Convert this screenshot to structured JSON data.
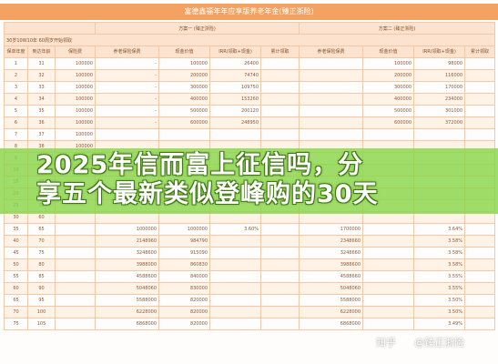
{
  "title": "富德鑫福年年应享版养老年金(臻正浙险)",
  "plan_headers": [
    "",
    "方案一 (臻正浙险)",
    "方案二 (臻正浙险)"
  ],
  "sub_header": "30岁10W10年 60周岁开始领取",
  "columns": [
    "保单年度",
    "到达年龄",
    "保险费",
    "养老保险保费",
    "现金价值",
    "IRR(领取+现金)",
    "累计领取",
    "养老保险保费",
    "现金价值",
    "IRR(领取+现金)",
    "累计领取"
  ],
  "rows": [
    [
      "1",
      "31",
      "100000",
      "-",
      "100000",
      "26400",
      "",
      "",
      "100000",
      "98000",
      ""
    ],
    [
      "2",
      "32",
      "100000",
      "-",
      "200000",
      "74740",
      "",
      "",
      "200000",
      "116000",
      ""
    ],
    [
      "3",
      "33",
      "100000",
      "-",
      "300000",
      "109750",
      "",
      "",
      "300000",
      "170000",
      ""
    ],
    [
      "4",
      "34",
      "100000",
      "-",
      "400000",
      "153260",
      "",
      "",
      "400000",
      "234000",
      ""
    ],
    [
      "5",
      "35",
      "100000",
      "-",
      "500000",
      "200120",
      "",
      "",
      "500000",
      "301000",
      ""
    ],
    [
      "6",
      "36",
      "100000",
      "-",
      "600000",
      "248950",
      "",
      "",
      "600000",
      "372000",
      ""
    ],
    [
      "7",
      "37",
      "100000",
      "",
      "",
      "",
      "",
      "",
      "",
      "",
      ""
    ],
    [
      "8",
      "38",
      "100000",
      "",
      "",
      "",
      "",
      "",
      "",
      "",
      ""
    ],
    [
      "9",
      "39",
      "100000",
      "",
      "",
      "",
      "",
      "",
      "",
      "",
      ""
    ],
    [
      "10",
      "40",
      "100000",
      "",
      "",
      "",
      "",
      "",
      "",
      "",
      ""
    ],
    [
      "15",
      "45",
      "",
      "",
      "",
      "",
      "",
      "",
      "",
      "",
      ""
    ],
    [
      "20",
      "50",
      "",
      "",
      "",
      "",
      "",
      "",
      "",
      "",
      ""
    ],
    [
      "25",
      "55",
      "",
      "",
      "",
      "",
      "",
      "",
      "",
      "",
      ""
    ],
    [
      "30",
      "60",
      "",
      "",
      "",
      "",
      "",
      "",
      "",
      "",
      ""
    ],
    [
      "35",
      "65",
      "",
      "1000000",
      "1000000",
      "3.60%",
      "",
      "1700000",
      "",
      "3.64%",
      ""
    ],
    [
      "40",
      "70",
      "",
      "2148960",
      "984790",
      "",
      "",
      "2348660",
      "",
      "3.58%",
      ""
    ],
    [
      "45",
      "75",
      "",
      "3248600",
      "915090",
      "",
      "",
      "3248660",
      "",
      "3.58%",
      ""
    ],
    [
      "50",
      "80",
      "",
      "3988000",
      "860830",
      "",
      "",
      "3988600",
      "",
      "3.58%",
      ""
    ],
    [
      "55",
      "85",
      "",
      "4588600",
      "840000",
      "",
      "",
      "4588660",
      "",
      "3.55%",
      ""
    ],
    [
      "60",
      "90",
      "",
      "5048060",
      "830000",
      "",
      "",
      "5048060",
      "",
      "3.55%",
      ""
    ],
    [
      "65",
      "95",
      "",
      "5588000",
      "820000",
      "",
      "",
      "5588000",
      "",
      "3.50%",
      ""
    ],
    [
      "70",
      "100",
      "",
      "6228000",
      "820000",
      "",
      "",
      "6228000",
      "",
      "3.50%",
      ""
    ],
    [
      "75",
      "105",
      "",
      "6868000",
      "820000",
      "",
      "",
      "6868000",
      "",
      "3.49%",
      ""
    ]
  ],
  "headline_lines": [
    "2025年信而富上征信吗，分",
    "享五个最新类似登峰购的30天"
  ],
  "watermark": {
    "site": "知乎",
    "author": "@臻正浙险"
  },
  "colors": {
    "header_orange": "#f3a261",
    "green_band": "#8ad64a",
    "grid_line": "#f1c9a8"
  }
}
